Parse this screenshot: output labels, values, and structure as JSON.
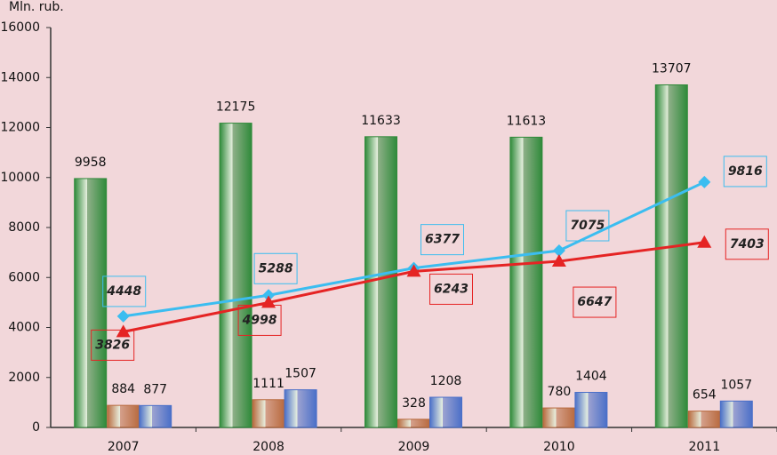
{
  "chart_data": {
    "type": "bar",
    "y_label": "Mln. rub.",
    "categories": [
      "2007",
      "2008",
      "2009",
      "2010",
      "2011"
    ],
    "series": [
      {
        "type": "bar",
        "color": "#2f8a3a",
        "values": [
          9958,
          12175,
          11633,
          11613,
          13707
        ]
      },
      {
        "type": "bar",
        "color": "#b86a3e",
        "values": [
          884,
          1111,
          328,
          780,
          654
        ]
      },
      {
        "type": "bar",
        "color": "#4a6fc8",
        "values": [
          877,
          1507,
          1208,
          1404,
          1057
        ]
      },
      {
        "type": "line",
        "color": "#3bbdf0",
        "marker": "diamond",
        "values": [
          4448,
          5288,
          6377,
          7075,
          9816
        ]
      },
      {
        "type": "line",
        "color": "#e52424",
        "marker": "triangle",
        "values": [
          3826,
          4998,
          6243,
          6647,
          7403
        ]
      }
    ],
    "ylim": [
      0,
      16000
    ],
    "yticks": [
      0,
      2000,
      4000,
      6000,
      8000,
      10000,
      12000,
      14000,
      16000
    ]
  }
}
